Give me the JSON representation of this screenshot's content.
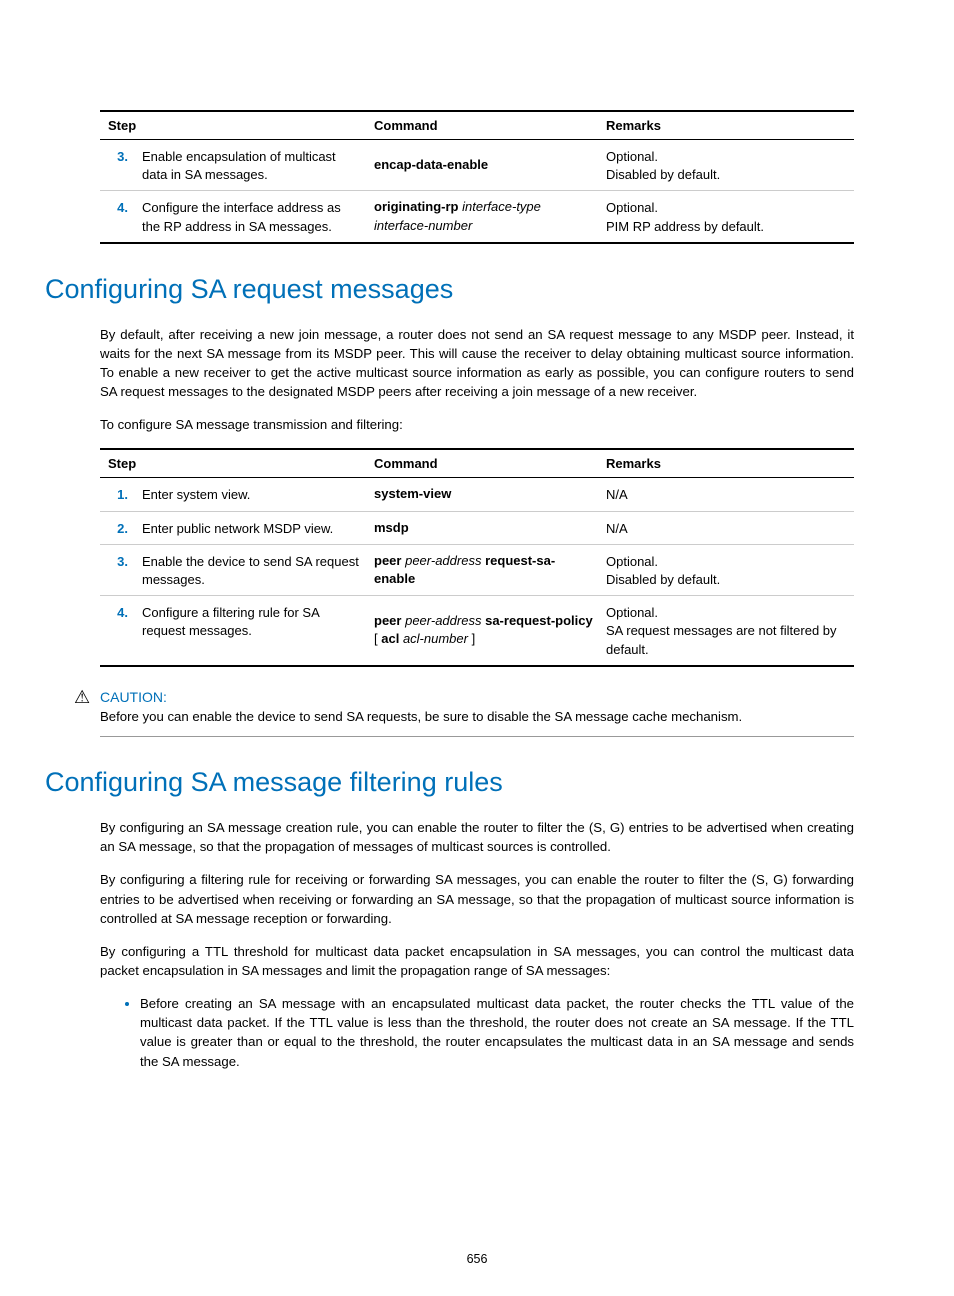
{
  "page_number": "656",
  "table1": {
    "columns": [
      "Step",
      "Command",
      "Remarks"
    ],
    "rows": [
      {
        "num": "3.",
        "step": "Enable encapsulation of multicast data in SA messages.",
        "cmd_html": "<b>encap-data-enable</b>",
        "remarks_html": "Optional.<br>Disabled by default."
      },
      {
        "num": "4.",
        "step": "Configure the interface address as the RP address in SA messages.",
        "cmd_html": "<b>originating-rp</b> <i>interface-type</i><br><i>interface-number</i>",
        "remarks_html": "Optional.<br>PIM RP address by default."
      }
    ]
  },
  "section1_title": "Configuring SA request messages",
  "section1_p1": "By default, after receiving a new join message, a router does not send an SA request message to any MSDP peer. Instead, it waits for the next SA message from its MSDP peer. This will cause the receiver to delay obtaining multicast source information. To enable a new receiver to get the active multicast source information as early as possible, you can configure routers to send SA request messages to the designated MSDP peers after receiving a join message of a new receiver.",
  "section1_p2": "To configure SA message transmission and filtering:",
  "table2": {
    "columns": [
      "Step",
      "Command",
      "Remarks"
    ],
    "rows": [
      {
        "num": "1.",
        "step": "Enter system view.",
        "cmd_html": "<b>system-view</b>",
        "remarks_html": "N/A"
      },
      {
        "num": "2.",
        "step": "Enter public network MSDP view.",
        "cmd_html": "<b>msdp</b>",
        "remarks_html": "N/A"
      },
      {
        "num": "3.",
        "step": "Enable the device to send SA request messages.",
        "cmd_html": "<b>peer</b> <i>peer-address</i> <b>request-sa-enable</b>",
        "remarks_html": "Optional.<br>Disabled by default."
      },
      {
        "num": "4.",
        "step": "Configure a filtering rule for SA request messages.",
        "cmd_html": "<b>peer</b> <i>peer-address</i> <b>sa-request-policy</b><br>[ <b>acl</b> <i>acl-number</i> ]",
        "remarks_html": "Optional.<br>SA request messages are not filtered by default."
      }
    ]
  },
  "caution_label": "CAUTION:",
  "caution_text": "Before you can enable the device to send SA requests, be sure to disable the SA message cache mechanism.",
  "section2_title": "Configuring SA message filtering rules",
  "section2_p1": "By configuring an SA message creation rule, you can enable the router to filter the (S, G) entries to be advertised when creating an SA message, so that the propagation of messages of multicast sources is controlled.",
  "section2_p2": "By configuring a filtering rule for receiving or forwarding SA messages, you can enable the router to filter the (S, G) forwarding entries to be advertised when receiving or forwarding an SA message, so that the propagation of multicast source information is controlled at SA message reception or forwarding.",
  "section2_p3": "By configuring a TTL threshold for multicast data packet encapsulation in SA messages, you can control the multicast data packet encapsulation in SA messages and limit the propagation range of SA messages:",
  "section2_bullet1": "Before creating an SA message with an encapsulated multicast data packet, the router checks the TTL value of the multicast data packet. If the TTL value is less than the threshold, the router does not create an SA message. If the TTL value is greater than or equal to the threshold, the router encapsulates the multicast data in an SA message and sends the SA message."
}
